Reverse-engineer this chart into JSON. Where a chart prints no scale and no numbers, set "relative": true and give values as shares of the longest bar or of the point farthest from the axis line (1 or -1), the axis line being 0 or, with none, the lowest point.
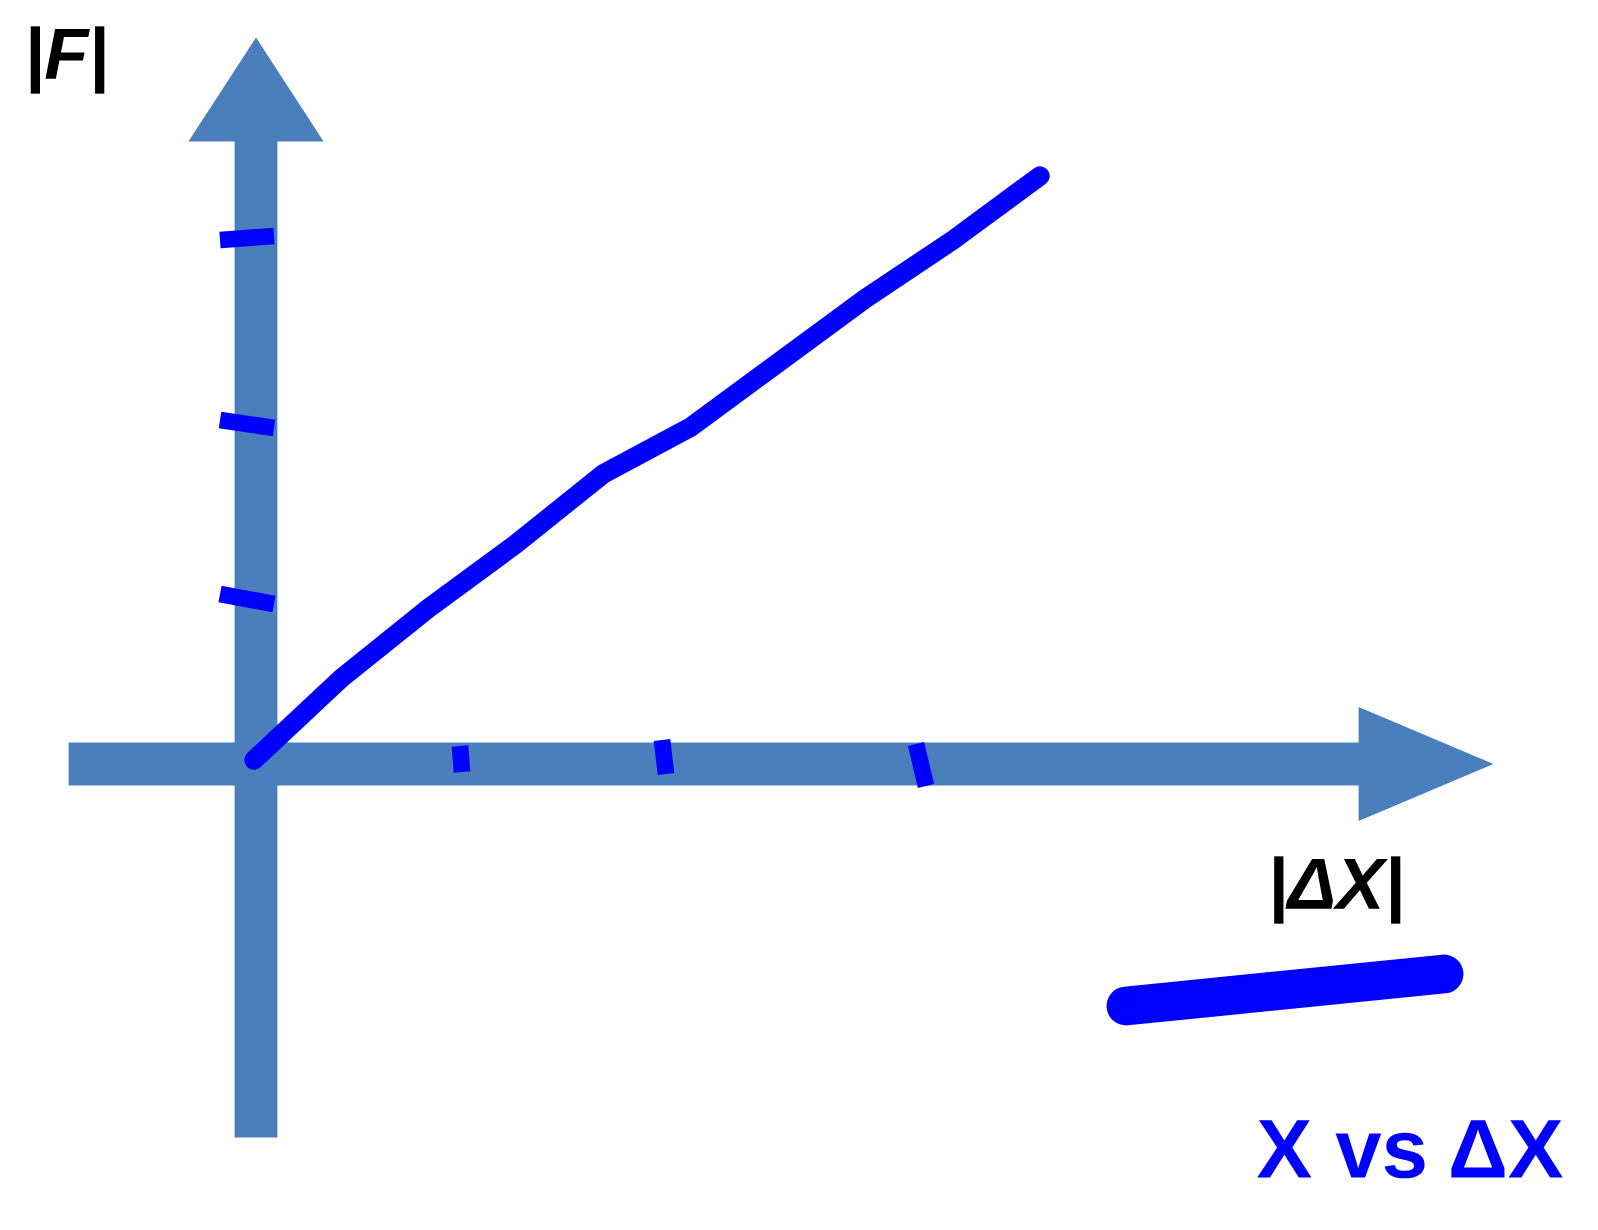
{
  "chart_data": {
    "type": "line",
    "relative": true,
    "xlabel": "|ΔX|",
    "categories": [
      null,
      null,
      null,
      null,
      null,
      null,
      null,
      null,
      null,
      null
    ],
    "series": [
      {
        "color": "#0000ff",
        "values": [
          0,
          0.14,
          0.26,
          0.37,
          0.49,
          0.57,
          0.68,
          0.79,
          0.89,
          1.0
        ]
      }
    ],
    "annotations": [
      "|F|",
      "X vs ΔX"
    ],
    "marker": "none",
    "line_style": "solid"
  }
}
